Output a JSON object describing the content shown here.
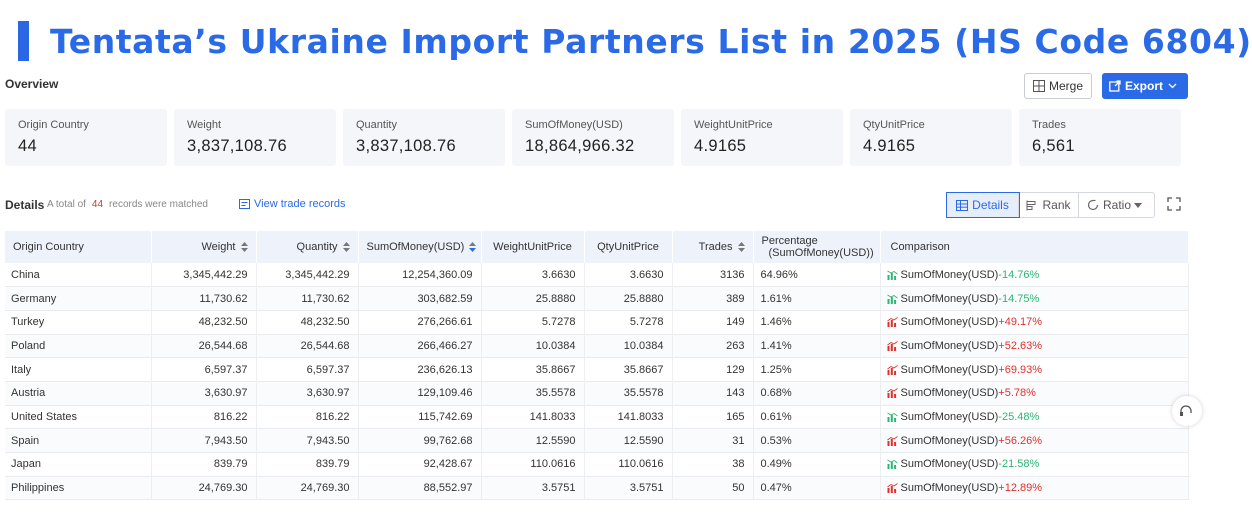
{
  "title": "Tentata’s Ukraine Import Partners List in 2025 (HS Code 6804)",
  "colors": {
    "accent": "#2b6ae6",
    "negative": "#2bb673",
    "positive": "#e0302c"
  },
  "overview": {
    "label": "Overview",
    "merge_label": "Merge",
    "export_label": "Export",
    "cards": [
      {
        "label": "Origin Country",
        "value": "44"
      },
      {
        "label": "Weight",
        "value": "3,837,108.76"
      },
      {
        "label": "Quantity",
        "value": "3,837,108.76"
      },
      {
        "label": "SumOfMoney(USD)",
        "value": "18,864,966.32"
      },
      {
        "label": "WeightUnitPrice",
        "value": "4.9165"
      },
      {
        "label": "QtyUnitPrice",
        "value": "4.9165"
      },
      {
        "label": "Trades",
        "value": "6,561"
      }
    ]
  },
  "details": {
    "label": "Details",
    "meta_prefix": "A total of",
    "count": "44",
    "meta_suffix": "records were matched",
    "view_link": "View trade records",
    "tabs": {
      "details": "Details",
      "rank": "Rank",
      "ratio": "Ratio"
    }
  },
  "table": {
    "headers": {
      "country": "Origin Country",
      "weight": "Weight",
      "quantity": "Quantity",
      "money": "SumOfMoney(USD)",
      "wup": "WeightUnitPrice",
      "qup": "QtyUnitPrice",
      "trades": "Trades",
      "pct_line1": "Percentage",
      "pct_line2": "(SumOfMoney(USD))",
      "comparison": "Comparison"
    },
    "rows": [
      {
        "country": "China",
        "weight": "3,345,442.29",
        "quantity": "3,345,442.29",
        "money": "12,254,360.09",
        "wup": "3.6630",
        "qup": "3.6630",
        "trades": "3136",
        "pct": "64.96%",
        "cmp_label": "SumOfMoney(USD)",
        "cmp_change": "-14.76%",
        "trend": "down"
      },
      {
        "country": "Germany",
        "weight": "11,730.62",
        "quantity": "11,730.62",
        "money": "303,682.59",
        "wup": "25.8880",
        "qup": "25.8880",
        "trades": "389",
        "pct": "1.61%",
        "cmp_label": "SumOfMoney(USD)",
        "cmp_change": "-14.75%",
        "trend": "down"
      },
      {
        "country": "Turkey",
        "weight": "48,232.50",
        "quantity": "48,232.50",
        "money": "276,266.61",
        "wup": "5.7278",
        "qup": "5.7278",
        "trades": "149",
        "pct": "1.46%",
        "cmp_label": "SumOfMoney(USD)",
        "cmp_change": "+49.17%",
        "trend": "up"
      },
      {
        "country": "Poland",
        "weight": "26,544.68",
        "quantity": "26,544.68",
        "money": "266,466.27",
        "wup": "10.0384",
        "qup": "10.0384",
        "trades": "263",
        "pct": "1.41%",
        "cmp_label": "SumOfMoney(USD)",
        "cmp_change": "+52.63%",
        "trend": "up"
      },
      {
        "country": "Italy",
        "weight": "6,597.37",
        "quantity": "6,597.37",
        "money": "236,626.13",
        "wup": "35.8667",
        "qup": "35.8667",
        "trades": "129",
        "pct": "1.25%",
        "cmp_label": "SumOfMoney(USD)",
        "cmp_change": "+69.93%",
        "trend": "up"
      },
      {
        "country": "Austria",
        "weight": "3,630.97",
        "quantity": "3,630.97",
        "money": "129,109.46",
        "wup": "35.5578",
        "qup": "35.5578",
        "trades": "143",
        "pct": "0.68%",
        "cmp_label": "SumOfMoney(USD)",
        "cmp_change": "+5.78%",
        "trend": "up"
      },
      {
        "country": "United States",
        "weight": "816.22",
        "quantity": "816.22",
        "money": "115,742.69",
        "wup": "141.8033",
        "qup": "141.8033",
        "trades": "165",
        "pct": "0.61%",
        "cmp_label": "SumOfMoney(USD)",
        "cmp_change": "-25.48%",
        "trend": "down"
      },
      {
        "country": "Spain",
        "weight": "7,943.50",
        "quantity": "7,943.50",
        "money": "99,762.68",
        "wup": "12.5590",
        "qup": "12.5590",
        "trades": "31",
        "pct": "0.53%",
        "cmp_label": "SumOfMoney(USD)",
        "cmp_change": "+56.26%",
        "trend": "up"
      },
      {
        "country": "Japan",
        "weight": "839.79",
        "quantity": "839.79",
        "money": "92,428.67",
        "wup": "110.0616",
        "qup": "110.0616",
        "trades": "38",
        "pct": "0.49%",
        "cmp_label": "SumOfMoney(USD)",
        "cmp_change": "-21.58%",
        "trend": "down"
      },
      {
        "country": "Philippines",
        "weight": "24,769.30",
        "quantity": "24,769.30",
        "money": "88,552.97",
        "wup": "3.5751",
        "qup": "3.5751",
        "trades": "50",
        "pct": "0.47%",
        "cmp_label": "SumOfMoney(USD)",
        "cmp_change": "+12.89%",
        "trend": "up"
      }
    ]
  }
}
